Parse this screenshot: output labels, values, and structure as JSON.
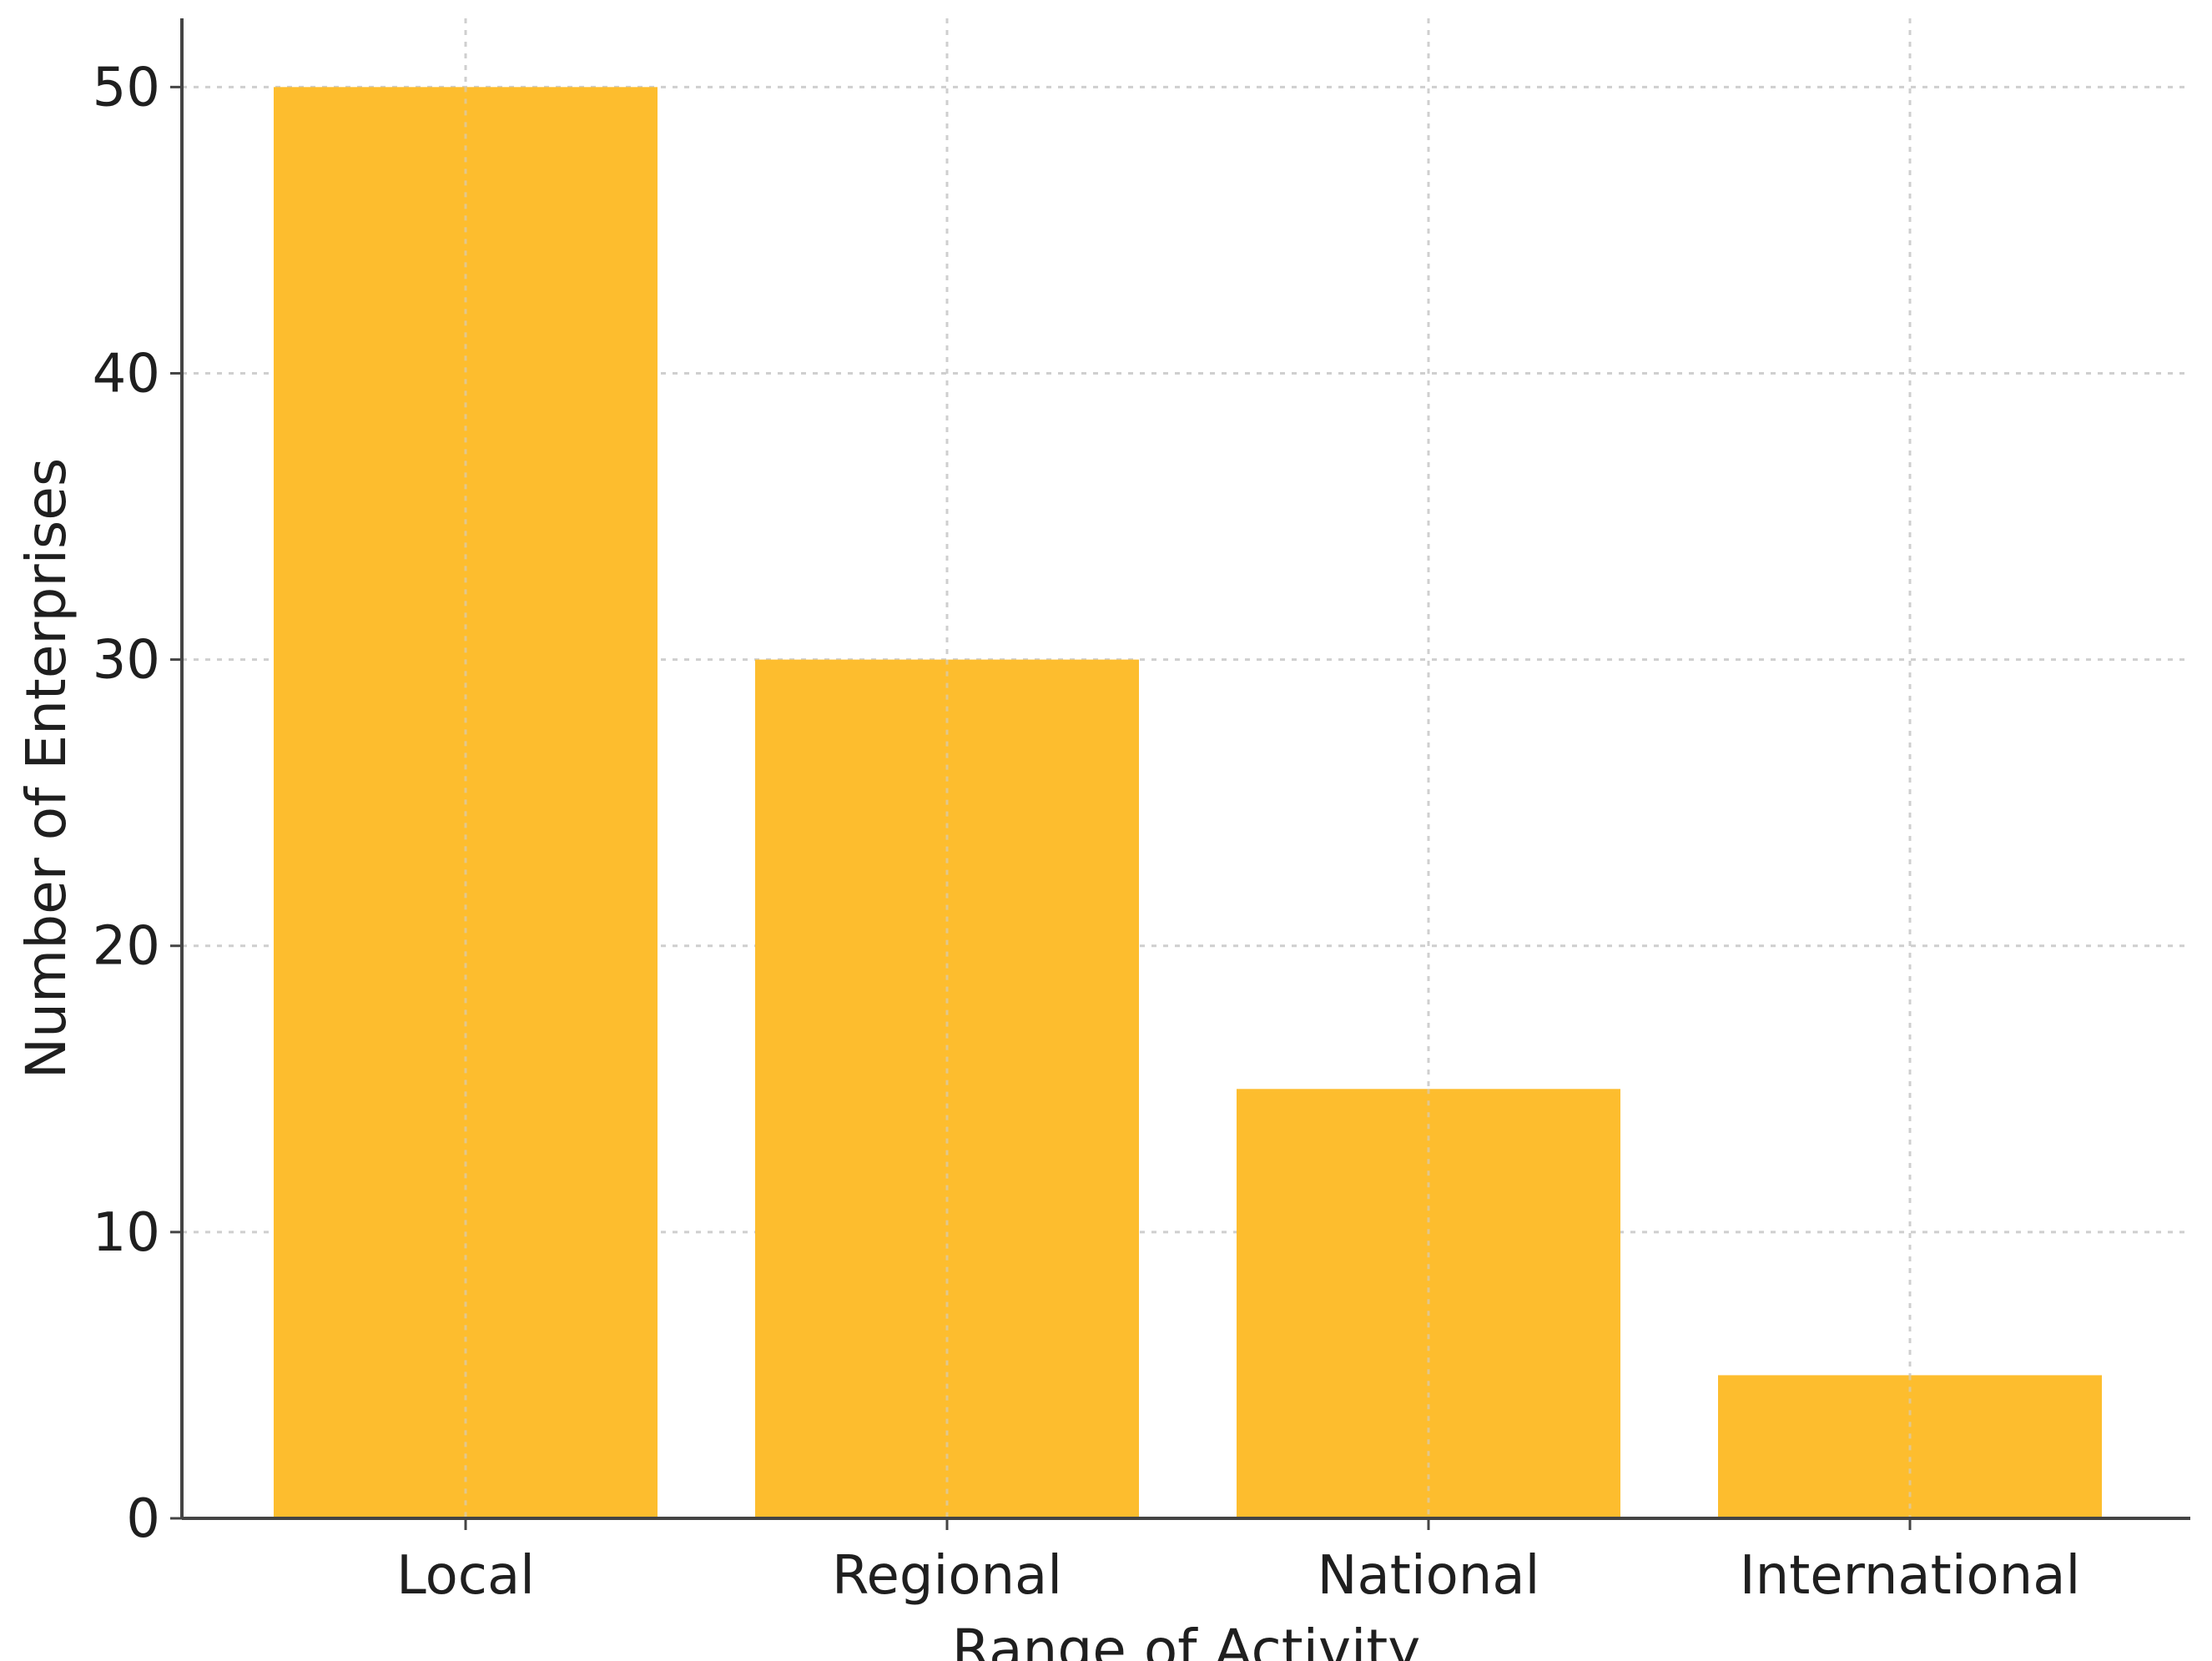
{
  "chart_data": {
    "type": "bar",
    "title": "",
    "xlabel": "Range of Activity",
    "ylabel": "Number of Enterprises",
    "categories": [
      "Local",
      "Regional",
      "National",
      "International"
    ],
    "values": [
      50,
      30,
      15,
      5
    ],
    "ylim": [
      0,
      52.4
    ],
    "yticks": [
      0,
      10,
      20,
      30,
      40,
      50
    ],
    "grid": true,
    "bar_color": "#FDBD2E",
    "legend": "none"
  }
}
